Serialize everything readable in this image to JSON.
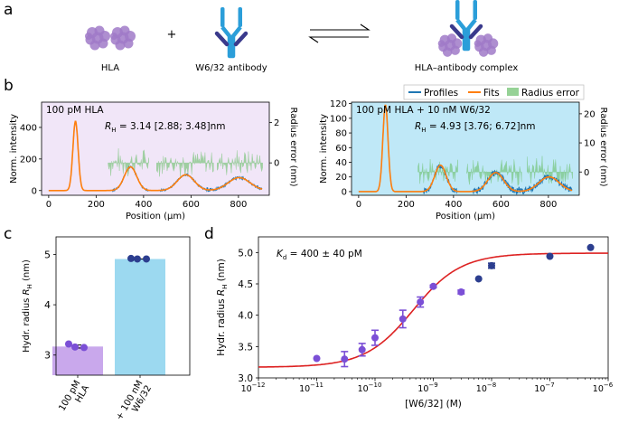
{
  "panel_letters": {
    "a": "a",
    "b": "b",
    "c": "c",
    "d": "d"
  },
  "panel_a": {
    "hla_label": "HLA",
    "plus": "+",
    "antibody_label": "W6/32 antibody",
    "complex_label": "HLA–antibody complex"
  },
  "legend": {
    "profiles": "Profiles",
    "fits": "Fits",
    "radius_error": "Radius error"
  },
  "colors": {
    "profiles": "#1f77b4",
    "fits": "#ff7f0e",
    "radius_error": "#6abf69",
    "panel_b_left_bg": "#f1e6f8",
    "panel_b_right_bg": "#bfe8f7",
    "protein": "#a07ac8",
    "antibody_light": "#2b9ed9",
    "antibody_dark": "#3a3a8c",
    "bar_hla": "#c9a8ec",
    "bar_complex": "#9cd9f0",
    "fit_curve": "#dd2222",
    "points_purple": "#7b4fd6",
    "points_navy": "#2c3e8f"
  },
  "chart_data": [
    {
      "type": "line",
      "title": "100 pM HLA",
      "annotation": {
        "prefix": "R",
        "subscript": "H",
        "text": " = 3.14 [2.88; 3.48]nm"
      },
      "xlabel": "Position (μm)",
      "ylabel": "Norm. intensity",
      "y2label": "Radius error (nm)",
      "xlim": [
        -30,
        930
      ],
      "ylim": [
        -30,
        560
      ],
      "y2lim": [
        -1.6,
        3.0
      ],
      "xticks": [
        0,
        200,
        400,
        600,
        800
      ],
      "xtick_labels": [
        "0",
        "200",
        "400",
        "600",
        "800"
      ],
      "yticks": [
        0,
        200,
        400
      ],
      "ytick_labels": [
        "0",
        "200",
        "400"
      ],
      "y2ticks": [
        0,
        2
      ],
      "y2tick_labels": [
        "0",
        "2"
      ],
      "peaks": [
        {
          "center": 113,
          "height": 440,
          "width": 11,
          "noise": 0
        },
        {
          "center": 345,
          "height": 150,
          "width": 26,
          "noise": 6
        },
        {
          "center": 578,
          "height": 100,
          "width": 36,
          "noise": 6
        },
        {
          "center": 803,
          "height": 82,
          "width": 46,
          "noise": 7
        }
      ],
      "residual_windows": [
        [
          250,
          425
        ],
        [
          455,
          695
        ],
        [
          710,
          905
        ]
      ]
    },
    {
      "type": "line",
      "title": "100 pM HLA + 10 nM W6/32",
      "annotation": {
        "prefix": "R",
        "subscript": "H",
        "text": " = 4.93 [3.76; 6.72]nm"
      },
      "xlabel": "Position (μm)",
      "ylabel": "Norm. intensity",
      "y2label": "Radius error (nm)",
      "xlim": [
        -30,
        930
      ],
      "ylim": [
        -5,
        122
      ],
      "y2lim": [
        -8,
        24
      ],
      "xticks": [
        0,
        200,
        400,
        600,
        800
      ],
      "xtick_labels": [
        "0",
        "200",
        "400",
        "600",
        "800"
      ],
      "yticks": [
        0,
        20,
        40,
        60,
        80,
        100,
        120
      ],
      "ytick_labels": [
        "0",
        "20",
        "40",
        "60",
        "80",
        "100",
        "120"
      ],
      "y2ticks": [
        0,
        10,
        20
      ],
      "y2tick_labels": [
        "0",
        "10",
        "20"
      ],
      "peaks": [
        {
          "center": 113,
          "height": 118,
          "width": 11,
          "noise": 0
        },
        {
          "center": 345,
          "height": 36,
          "width": 24,
          "noise": 4
        },
        {
          "center": 578,
          "height": 26,
          "width": 33,
          "noise": 4
        },
        {
          "center": 803,
          "height": 20,
          "width": 43,
          "noise": 4
        }
      ],
      "residual_windows": [
        [
          250,
          420
        ],
        [
          455,
          690
        ],
        [
          710,
          905
        ]
      ]
    },
    {
      "type": "bar",
      "categories": [
        "100 pM\nHLA",
        "+ 100 nM\nW6/32"
      ],
      "values": [
        3.17,
        4.91
      ],
      "errors": [
        0.03,
        0.0
      ],
      "points": [
        [
          3.22,
          3.16,
          3.15
        ],
        [
          4.92,
          4.91,
          4.91
        ]
      ],
      "ylabel": {
        "prefix": "Hydr. radius ",
        "italic": "R",
        "subscript": "H",
        "suffix": " (nm)"
      },
      "ylim": [
        2.6,
        5.35
      ],
      "yticks": [
        3,
        4,
        5
      ],
      "ytick_labels": [
        "3",
        "4",
        "5"
      ]
    },
    {
      "type": "scatter",
      "xscale": "log",
      "xlabel": "[W6/32] (M)",
      "ylabel": {
        "prefix": "Hydr. radius ",
        "italic": "R",
        "subscript": "H",
        "suffix": " (nm)"
      },
      "annotation": {
        "prefix": "K",
        "subscript": "d",
        "text": " = 400 ± 40 pM"
      },
      "xlim_exp": [
        -12,
        -6
      ],
      "ylim": [
        3.0,
        5.25
      ],
      "xticks_exp": [
        -12,
        -11,
        -10,
        -9,
        -8,
        -7,
        -6
      ],
      "xtick_base": "10",
      "yticks": [
        3.0,
        3.5,
        4.0,
        4.5,
        5.0
      ],
      "ytick_labels": [
        "3.0",
        "3.5",
        "4.0",
        "4.5",
        "5.0"
      ],
      "points": [
        {
          "x": 1e-11,
          "y": 3.31,
          "err": 0.0,
          "group": "purple"
        },
        {
          "x": 3e-11,
          "y": 3.3,
          "err": 0.12,
          "group": "purple"
        },
        {
          "x": 6e-11,
          "y": 3.45,
          "err": 0.1,
          "group": "purple"
        },
        {
          "x": 1e-10,
          "y": 3.64,
          "err": 0.12,
          "group": "purple"
        },
        {
          "x": 3e-10,
          "y": 3.94,
          "err": 0.14,
          "group": "purple"
        },
        {
          "x": 6e-10,
          "y": 4.21,
          "err": 0.08,
          "group": "purple"
        },
        {
          "x": 1e-09,
          "y": 4.46,
          "err": 0.02,
          "group": "purple"
        },
        {
          "x": 3e-09,
          "y": 4.37,
          "err": 0.03,
          "group": "purple"
        },
        {
          "x": 6e-09,
          "y": 4.58,
          "err": 0.0,
          "group": "navy"
        },
        {
          "x": 1e-08,
          "y": 4.79,
          "err": 0.04,
          "group": "navy"
        },
        {
          "x": 1e-07,
          "y": 4.94,
          "err": 0.0,
          "group": "navy"
        },
        {
          "x": 5e-07,
          "y": 5.08,
          "err": 0.0,
          "group": "navy"
        }
      ],
      "fit": {
        "model": "binding",
        "Kd": 4e-10,
        "R_min": 3.17,
        "R_max": 4.99,
        "protein_conc": 1e-10
      }
    }
  ]
}
